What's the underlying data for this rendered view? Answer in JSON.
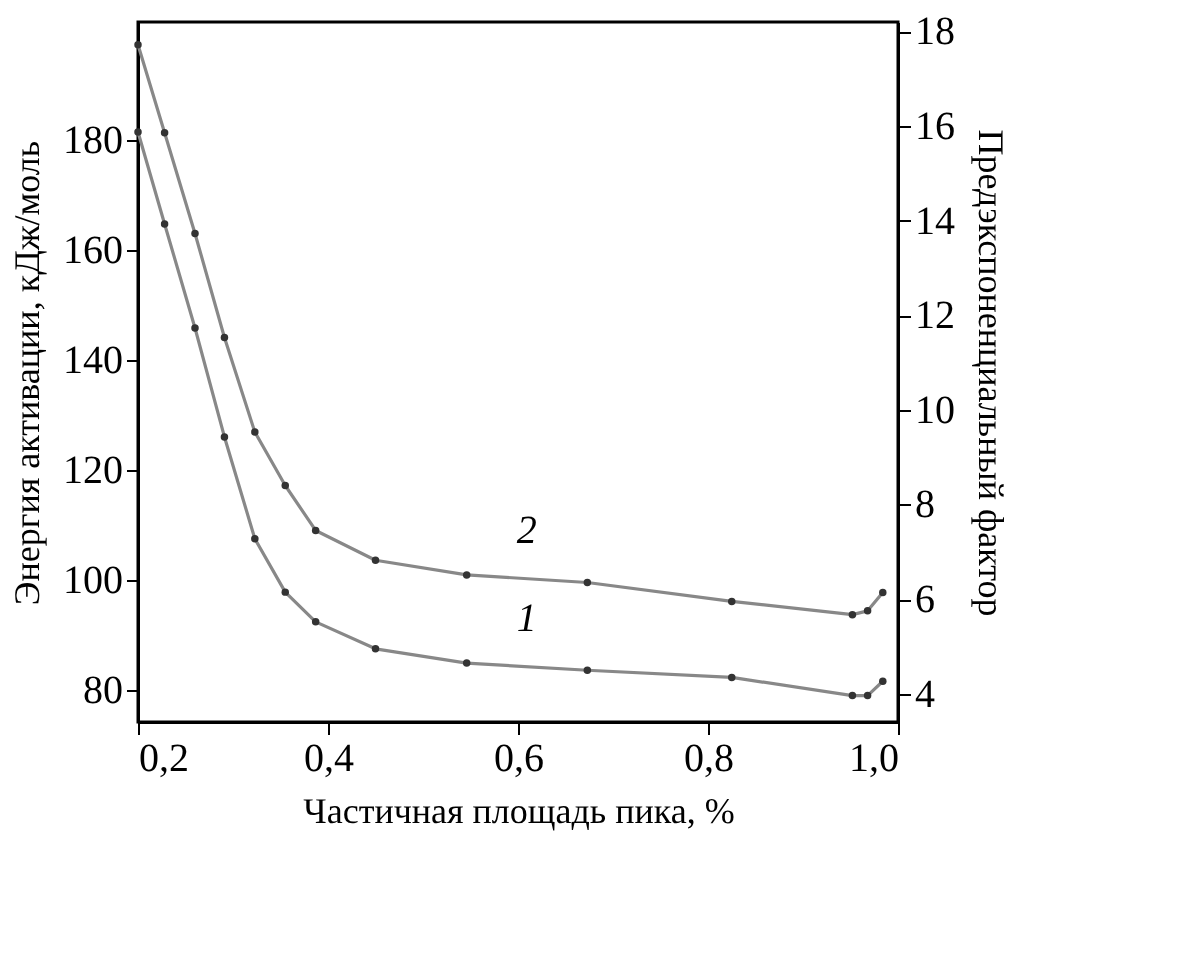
{
  "chart_data": {
    "type": "line",
    "xlabel": "Частичная площадь пика, %",
    "ylabel": "Энергия активации, кДж/моль",
    "y2label": "Предэкспоненциальный фактор",
    "x": [
      0.2,
      0.228,
      0.26,
      0.291,
      0.323,
      0.355,
      0.387,
      0.45,
      0.546,
      0.673,
      0.825,
      0.952,
      0.968,
      0.984
    ],
    "series": [
      {
        "color": "#333333",
        "values": [
          181.4,
          164.7,
          145.8,
          126.0,
          107.5,
          97.8,
          92.4,
          87.5,
          84.9,
          83.6,
          82.3,
          79.0,
          79.0,
          81.6
        ]
      },
      {
        "color": "#333333",
        "axis": "y2",
        "values": [
          17.72,
          15.86,
          13.73,
          11.53,
          9.53,
          8.4,
          7.45,
          6.82,
          6.51,
          6.35,
          5.95,
          5.67,
          5.75,
          6.14
        ]
      }
    ],
    "xlim": [
      0.2,
      1.0
    ],
    "xticks": [
      {
        "value": 0.2,
        "label": "0,2"
      },
      {
        "value": 0.4,
        "label": "0,4"
      },
      {
        "value": 0.6,
        "label": "0,6"
      },
      {
        "value": 0.8,
        "label": "0,8"
      },
      {
        "value": 1.0,
        "label": "1,0"
      }
    ],
    "ylim": [
      74.2,
      201.4
    ],
    "yticks": [
      80,
      100,
      120,
      140,
      160,
      180
    ],
    "y2lim": [
      3.4,
      18.2
    ],
    "y2ticks": [
      4,
      6,
      8,
      10,
      12,
      14,
      16,
      18
    ],
    "annotations": [
      "1",
      "2"
    ],
    "marker": "circle",
    "line_style": "solid",
    "grid": false
  }
}
